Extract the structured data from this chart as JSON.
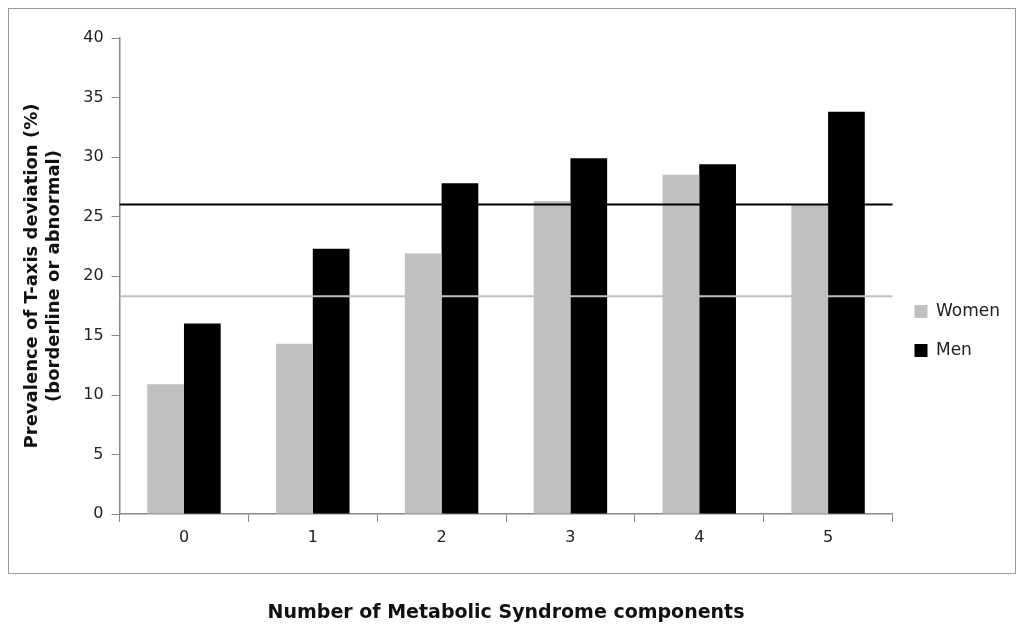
{
  "chart_data": {
    "type": "bar",
    "xlabel": "Number of Metabolic Syndrome components",
    "ylabel": "Prevalence of T-axis deviation (%)\n(borderline or abnormal)",
    "categories": [
      "0",
      "1",
      "2",
      "3",
      "4",
      "5"
    ],
    "series": [
      {
        "name": "Women",
        "color": "#c0c0c0",
        "values": [
          10.9,
          14.3,
          21.9,
          26.3,
          28.5,
          26.0
        ]
      },
      {
        "name": "Men",
        "color": "#000000",
        "values": [
          16.0,
          22.3,
          27.8,
          29.9,
          29.4,
          33.8
        ]
      }
    ],
    "ylim": [
      0,
      40
    ],
    "yticks": [
      0,
      5,
      10,
      15,
      20,
      25,
      30,
      35,
      40
    ],
    "grid": false,
    "legend": "right",
    "ref_lines": [
      {
        "axis": "y",
        "value": 26.0,
        "color": "#000000"
      },
      {
        "axis": "y",
        "value": 18.3,
        "color": "#c0c0c0"
      }
    ]
  }
}
